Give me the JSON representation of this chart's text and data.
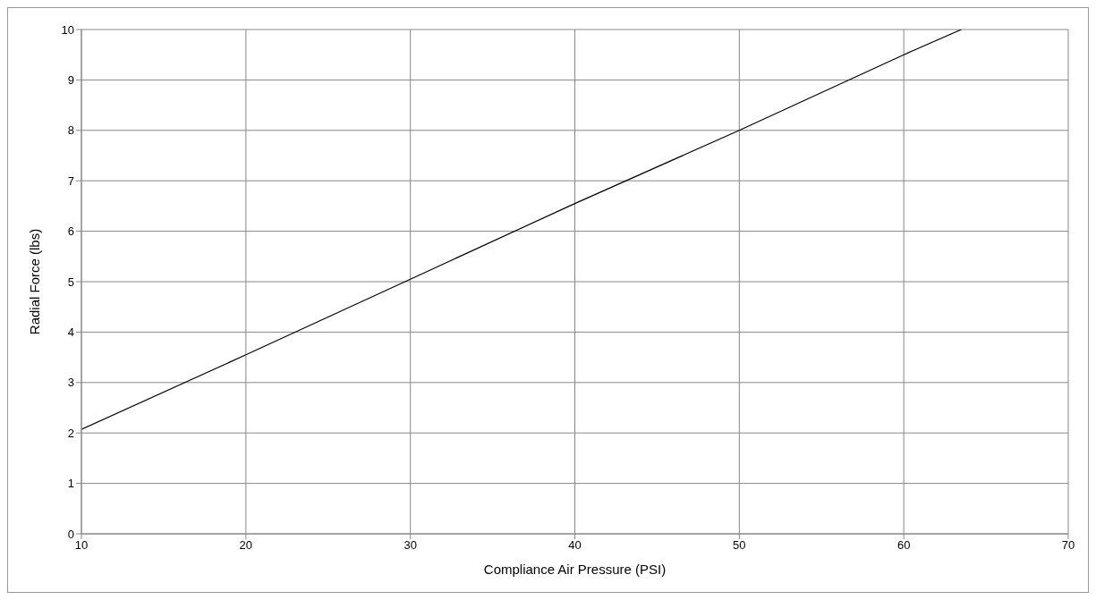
{
  "chart_data": {
    "type": "line",
    "xlabel": "Compliance Air Pressure (PSI)",
    "ylabel": "Radial Force (lbs)",
    "x": [
      10,
      20,
      30,
      40,
      50,
      60,
      63.5
    ],
    "series": [
      {
        "color": "#000000",
        "values": [
          2.07,
          3.55,
          5.05,
          6.55,
          8.0,
          9.5,
          10
        ]
      }
    ],
    "xlim": [
      10,
      70
    ],
    "xticks": [
      10,
      20,
      30,
      40,
      50,
      60,
      70
    ],
    "ylim": [
      0,
      10
    ],
    "yticks": [
      0,
      1,
      2,
      3,
      4,
      5,
      6,
      7,
      8,
      9,
      10
    ],
    "grid": true,
    "legend": false,
    "marker": "none",
    "line_style": "solid"
  }
}
